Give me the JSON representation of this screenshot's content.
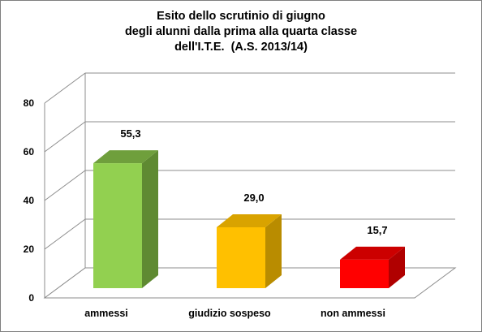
{
  "chart_data": {
    "type": "bar",
    "title_lines": [
      "Esito dello scrutinio di giugno",
      "degli alunni dalla prima alla quarta classe",
      "dell'I.T.E.  (A.S. 2013/14)"
    ],
    "categories": [
      "ammessi",
      "giudizio sospeso",
      "non ammessi"
    ],
    "values": [
      55.3,
      29.0,
      15.7
    ],
    "value_labels": [
      "55,3",
      "29,0",
      "15,7"
    ],
    "colors": [
      {
        "front": "#92d050",
        "side": "#5f8a32",
        "top": "#6f9f3c"
      },
      {
        "front": "#ffc000",
        "side": "#b98c00",
        "top": "#d9a300"
      },
      {
        "front": "#ff0000",
        "side": "#b00000",
        "top": "#cc0000"
      }
    ],
    "yticks": [
      "0",
      "20",
      "40",
      "60",
      "80"
    ],
    "ylim": [
      0,
      80
    ],
    "grid": true,
    "legend": "none"
  }
}
